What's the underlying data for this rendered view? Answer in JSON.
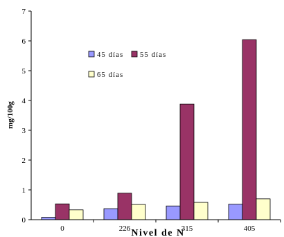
{
  "chart_data": {
    "type": "bar",
    "title": "",
    "xlabel": "Nivel de N",
    "ylabel": "mg/100g",
    "categories": [
      "0",
      "226",
      "315",
      "405"
    ],
    "series": [
      {
        "name": "45 días",
        "color": "#9999ff",
        "values": [
          0.08,
          0.37,
          0.46,
          0.52
        ]
      },
      {
        "name": "55 días",
        "color": "#993366",
        "values": [
          0.53,
          0.89,
          3.88,
          6.04
        ]
      },
      {
        "name": "65 días",
        "color": "#ffffcc",
        "values": [
          0.33,
          0.51,
          0.58,
          0.7
        ]
      }
    ],
    "ylim": [
      0,
      7
    ],
    "yticks": [
      "0",
      "1",
      "2",
      "3",
      "4",
      "5",
      "6",
      "7"
    ],
    "grid": false,
    "legend_position": "upper-left-inside"
  }
}
